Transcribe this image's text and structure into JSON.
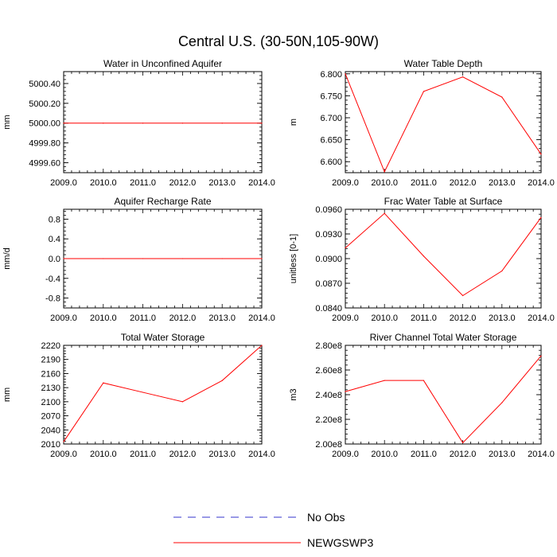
{
  "figure": {
    "title": "Central U.S. (30-50N,105-90W)"
  },
  "legend": {
    "entries": [
      {
        "label": "No Obs",
        "color": "#3333cc",
        "style": "dashed"
      },
      {
        "label": "NEWGSWP3",
        "color": "#ff0000",
        "style": "solid"
      }
    ]
  },
  "colors": {
    "series": "#ff0000",
    "axis": "#000000"
  },
  "chart_data": [
    {
      "type": "line",
      "title": "Water in Unconfined Aquifer",
      "ylabel": "mm",
      "xlim": [
        2009,
        2014
      ],
      "ylim": [
        4999.5,
        5000.52
      ],
      "xticks": [
        2009,
        2010,
        2011,
        2012,
        2013,
        2014
      ],
      "xtick_labels": [
        "2009.0",
        "2010.0",
        "2011.0",
        "2012.0",
        "2013.0",
        "2014.0"
      ],
      "yticks": [
        4999.6,
        4999.8,
        5000.0,
        5000.2,
        5000.4
      ],
      "ytick_labels": [
        "4999.60",
        "4999.80",
        "5000.00",
        "5000.20",
        "5000.40"
      ],
      "series": [
        {
          "name": "NEWGSWP3",
          "x": [
            2009,
            2010,
            2011,
            2012,
            2013,
            2014
          ],
          "y": [
            5000.0,
            5000.0,
            5000.0,
            5000.0,
            5000.0,
            5000.0
          ]
        }
      ]
    },
    {
      "type": "line",
      "title": "Water Table Depth",
      "ylabel": "m",
      "xlim": [
        2009,
        2014
      ],
      "ylim": [
        6.575,
        6.805
      ],
      "xticks": [
        2009,
        2010,
        2011,
        2012,
        2013,
        2014
      ],
      "xtick_labels": [
        "2009.0",
        "2010.0",
        "2011.0",
        "2012.0",
        "2013.0",
        "2014.0"
      ],
      "yticks": [
        6.6,
        6.65,
        6.7,
        6.75,
        6.8
      ],
      "ytick_labels": [
        "6.600",
        "6.650",
        "6.700",
        "6.750",
        "6.800"
      ],
      "series": [
        {
          "name": "NEWGSWP3",
          "x": [
            2009,
            2010,
            2011,
            2012,
            2013,
            2014
          ],
          "y": [
            6.8,
            6.577,
            6.76,
            6.793,
            6.747,
            6.617
          ]
        }
      ]
    },
    {
      "type": "line",
      "title": "Aquifer Recharge Rate",
      "ylabel": "mm/d",
      "xlim": [
        2009,
        2014
      ],
      "ylim": [
        -1.0,
        1.0
      ],
      "xticks": [
        2009,
        2010,
        2011,
        2012,
        2013,
        2014
      ],
      "xtick_labels": [
        "2009.0",
        "2010.0",
        "2011.0",
        "2012.0",
        "2013.0",
        "2014.0"
      ],
      "yticks": [
        -0.8,
        -0.4,
        0.0,
        0.4,
        0.8
      ],
      "ytick_labels": [
        "-0.8",
        "-0.4",
        "0.0",
        "0.4",
        "0.8"
      ],
      "series": [
        {
          "name": "NEWGSWP3",
          "x": [
            2009,
            2010,
            2011,
            2012,
            2013,
            2014
          ],
          "y": [
            0.0,
            0.0,
            0.0,
            0.0,
            0.0,
            0.0
          ]
        }
      ]
    },
    {
      "type": "line",
      "title": "Frac Water Table at Surface",
      "ylabel": "unitless [0-1]",
      "xlim": [
        2009,
        2014
      ],
      "ylim": [
        0.084,
        0.096
      ],
      "xticks": [
        2009,
        2010,
        2011,
        2012,
        2013,
        2014
      ],
      "xtick_labels": [
        "2009.0",
        "2010.0",
        "2011.0",
        "2012.0",
        "2013.0",
        "2014.0"
      ],
      "yticks": [
        0.084,
        0.087,
        0.09,
        0.093,
        0.096
      ],
      "ytick_labels": [
        "0.0840",
        "0.0870",
        "0.0900",
        "0.0930",
        "0.0960"
      ],
      "series": [
        {
          "name": "NEWGSWP3",
          "x": [
            2009,
            2010,
            2011,
            2012,
            2013,
            2014
          ],
          "y": [
            0.0913,
            0.0955,
            0.0903,
            0.0855,
            0.0885,
            0.095
          ]
        }
      ]
    },
    {
      "type": "line",
      "title": "Total Water Storage",
      "ylabel": "mm",
      "xlim": [
        2009,
        2014
      ],
      "ylim": [
        2010,
        2220
      ],
      "xticks": [
        2009,
        2010,
        2011,
        2012,
        2013,
        2014
      ],
      "xtick_labels": [
        "2009.0",
        "2010.0",
        "2011.0",
        "2012.0",
        "2013.0",
        "2014.0"
      ],
      "yticks": [
        2010,
        2040,
        2070,
        2100,
        2130,
        2160,
        2190,
        2220
      ],
      "ytick_labels": [
        "2010",
        "2040",
        "2070",
        "2100",
        "2130",
        "2160",
        "2190",
        "2220"
      ],
      "series": [
        {
          "name": "NEWGSWP3",
          "x": [
            2009,
            2010,
            2011,
            2012,
            2013,
            2014
          ],
          "y": [
            2015,
            2140,
            2120,
            2100,
            2145,
            2220
          ]
        }
      ]
    },
    {
      "type": "line",
      "title": "River Channel Total Water Storage",
      "ylabel": "m3",
      "xlim": [
        2009,
        2014
      ],
      "ylim": [
        200000000,
        280000000
      ],
      "xticks": [
        2009,
        2010,
        2011,
        2012,
        2013,
        2014
      ],
      "xtick_labels": [
        "2009.0",
        "2010.0",
        "2011.0",
        "2012.0",
        "2013.0",
        "2014.0"
      ],
      "yticks": [
        200000000,
        220000000,
        240000000,
        260000000,
        280000000
      ],
      "ytick_labels": [
        "2.00e8",
        "2.20e8",
        "2.40e8",
        "2.60e8",
        "2.80e8"
      ],
      "series": [
        {
          "name": "NEWGSWP3",
          "x": [
            2009,
            2010,
            2011,
            2012,
            2013,
            2014
          ],
          "y": [
            242500000,
            251500000,
            251500000,
            201000000,
            233500000,
            271500000
          ]
        }
      ]
    }
  ]
}
